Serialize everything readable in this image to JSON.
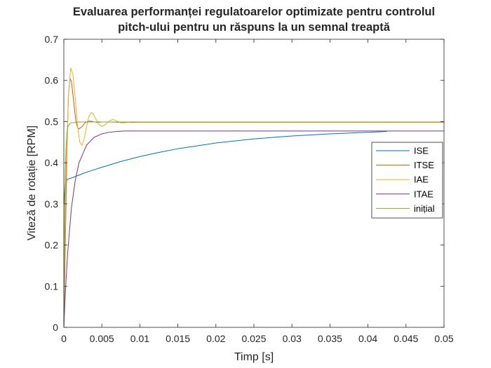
{
  "chart_data": {
    "type": "line",
    "title": [
      "Evaluarea performanței regulatoarelor optimizate pentru controlul",
      "pitch-ului pentru un răspuns la un semnal treaptă"
    ],
    "xlabel": "Timp [s]",
    "ylabel": "Viteză de rotație [RPM]",
    "xlim": [
      0,
      0.05
    ],
    "ylim": [
      0,
      0.7
    ],
    "xticks": [
      0,
      0.005,
      0.01,
      0.015,
      0.02,
      0.025,
      0.03,
      0.035,
      0.04,
      0.045,
      0.05
    ],
    "xtick_labels": [
      "0",
      "0.005",
      "0.01",
      "0.015",
      "0.02",
      "0.025",
      "0.03",
      "0.035",
      "0.04",
      "0.045",
      "0.05"
    ],
    "yticks": [
      0,
      0.1,
      0.2,
      0.3,
      0.4,
      0.5,
      0.6,
      0.7
    ],
    "ytick_labels": [
      "0",
      "0.1",
      "0.2",
      "0.3",
      "0.4",
      "0.5",
      "0.6",
      "0.7"
    ],
    "grid": false,
    "legend_position": "right",
    "series": [
      {
        "name": "ISE",
        "color": "#0072BD",
        "x": [
          0,
          0.0002,
          0.0005,
          0.001,
          0.002,
          0.003,
          0.005,
          0.0075,
          0.01,
          0.0125,
          0.015,
          0.0175,
          0.02,
          0.025,
          0.03,
          0.035,
          0.04,
          0.0425
        ],
        "y": [
          0.3,
          0.352,
          0.36,
          0.363,
          0.37,
          0.377,
          0.389,
          0.403,
          0.415,
          0.425,
          0.434,
          0.441,
          0.448,
          0.458,
          0.465,
          0.47,
          0.474,
          0.476
        ]
      },
      {
        "name": "ITSE",
        "color": "#D95319",
        "x": [
          0,
          0.0002,
          0.0004,
          0.0006,
          0.0008,
          0.001,
          0.0012,
          0.0014,
          0.0016,
          0.0018,
          0.002,
          0.0024,
          0.0028,
          0.0032,
          0.0036,
          0.004,
          0.0045,
          0.005,
          0.006,
          0.008,
          0.01,
          0.05
        ],
        "y": [
          0,
          0.2,
          0.42,
          0.56,
          0.605,
          0.598,
          0.565,
          0.53,
          0.5,
          0.486,
          0.482,
          0.488,
          0.497,
          0.501,
          0.501,
          0.499,
          0.498,
          0.499,
          0.499,
          0.498,
          0.498,
          0.498
        ]
      },
      {
        "name": "IAE",
        "color": "#EDB120",
        "x": [
          0,
          0.0003,
          0.0006,
          0.0009,
          0.0012,
          0.0015,
          0.0018,
          0.0021,
          0.0024,
          0.0027,
          0.003,
          0.0033,
          0.0036,
          0.0039,
          0.0042,
          0.0046,
          0.005,
          0.0055,
          0.006,
          0.0065,
          0.007,
          0.0075,
          0.008,
          0.009,
          0.01,
          0.05
        ],
        "y": [
          0,
          0.38,
          0.56,
          0.63,
          0.615,
          0.555,
          0.49,
          0.45,
          0.442,
          0.46,
          0.488,
          0.512,
          0.522,
          0.518,
          0.506,
          0.494,
          0.488,
          0.493,
          0.502,
          0.505,
          0.501,
          0.497,
          0.497,
          0.499,
          0.498,
          0.498
        ]
      },
      {
        "name": "ITAE",
        "color": "#7E2F8E",
        "x": [
          0,
          0.0002,
          0.0005,
          0.001,
          0.0015,
          0.002,
          0.003,
          0.004,
          0.005,
          0.006,
          0.007,
          0.008,
          0.01,
          0.012,
          0.015,
          0.02,
          0.03,
          0.05
        ],
        "y": [
          0,
          0.085,
          0.18,
          0.29,
          0.357,
          0.4,
          0.443,
          0.462,
          0.47,
          0.474,
          0.476,
          0.477,
          0.477,
          0.477,
          0.477,
          0.477,
          0.477,
          0.477
        ]
      },
      {
        "name": "inițial",
        "color": "#77AC30",
        "x": [
          0,
          0.0001,
          0.0002,
          0.0003,
          0.0004,
          0.0005,
          0.0006,
          0.0008,
          0.001,
          0.0015,
          0.002,
          0.003,
          0.004,
          0.05
        ],
        "y": [
          0,
          0.25,
          0.38,
          0.44,
          0.47,
          0.485,
          0.49,
          0.495,
          0.497,
          0.498,
          0.499,
          0.499,
          0.499,
          0.499
        ]
      }
    ]
  }
}
